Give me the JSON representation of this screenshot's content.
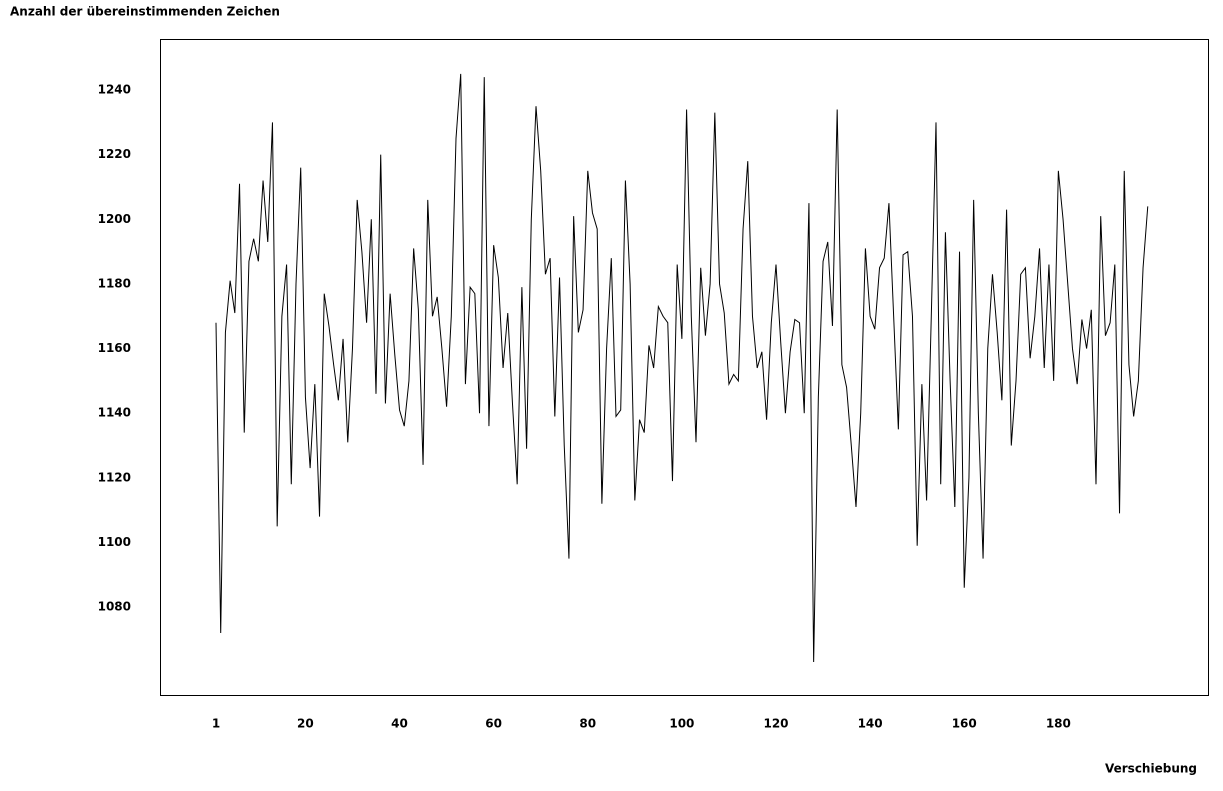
{
  "chart_data": {
    "type": "line",
    "y_label": "Anzahl der übereinstimmenden Zeichen",
    "x_label": "Verschiebung",
    "x": [
      1,
      2,
      3,
      4,
      5,
      6,
      7,
      8,
      9,
      10,
      11,
      12,
      13,
      14,
      15,
      16,
      17,
      18,
      19,
      20,
      21,
      22,
      23,
      24,
      25,
      26,
      27,
      28,
      29,
      30,
      31,
      32,
      33,
      34,
      35,
      36,
      37,
      38,
      39,
      40,
      41,
      42,
      43,
      44,
      45,
      46,
      47,
      48,
      49,
      50,
      51,
      52,
      53,
      54,
      55,
      56,
      57,
      58,
      59,
      60,
      61,
      62,
      63,
      64,
      65,
      66,
      67,
      68,
      69,
      70,
      71,
      72,
      73,
      74,
      75,
      76,
      77,
      78,
      79,
      80,
      81,
      82,
      83,
      84,
      85,
      86,
      87,
      88,
      89,
      90,
      91,
      92,
      93,
      94,
      95,
      96,
      97,
      98,
      99,
      100,
      101,
      102,
      103,
      104,
      105,
      106,
      107,
      108,
      109,
      110,
      111,
      112,
      113,
      114,
      115,
      116,
      117,
      118,
      119,
      120,
      121,
      122,
      123,
      124,
      125,
      126,
      127,
      128,
      129,
      130,
      131,
      132,
      133,
      134,
      135,
      136,
      137,
      138,
      139,
      140,
      141,
      142,
      143,
      144,
      145,
      146,
      147,
      148,
      149,
      150,
      151,
      152,
      153,
      154,
      155,
      156,
      157,
      158,
      159,
      160,
      161,
      162,
      163,
      164,
      165,
      166,
      167,
      168,
      169,
      170,
      171,
      172,
      173,
      174,
      175,
      176,
      177,
      178,
      179,
      180,
      181,
      182,
      183,
      184,
      185,
      186,
      187,
      188,
      189,
      190,
      191,
      192,
      193,
      194,
      195,
      196,
      197,
      198,
      199
    ],
    "series": [
      {
        "color": "#000000",
        "values": [
          1168,
          1072,
          1165,
          1181,
          1171,
          1211,
          1134,
          1187,
          1194,
          1187,
          1212,
          1193,
          1230,
          1105,
          1170,
          1186,
          1118,
          1180,
          1216,
          1145,
          1123,
          1149,
          1108,
          1177,
          1167,
          1155,
          1144,
          1163,
          1131,
          1160,
          1206,
          1190,
          1168,
          1200,
          1146,
          1220,
          1143,
          1177,
          1158,
          1141,
          1136,
          1150,
          1191,
          1172,
          1124,
          1206,
          1170,
          1176,
          1160,
          1142,
          1170,
          1225,
          1245,
          1149,
          1179,
          1177,
          1140,
          1244,
          1136,
          1192,
          1182,
          1154,
          1171,
          1143,
          1118,
          1179,
          1129,
          1200,
          1235,
          1215,
          1183,
          1188,
          1139,
          1182,
          1130,
          1095,
          1201,
          1165,
          1172,
          1215,
          1202,
          1197,
          1112,
          1160,
          1188,
          1139,
          1141,
          1212,
          1180,
          1113,
          1138,
          1134,
          1161,
          1154,
          1173,
          1170,
          1168,
          1119,
          1186,
          1163,
          1234,
          1170,
          1131,
          1185,
          1164,
          1180,
          1233,
          1180,
          1171,
          1149,
          1152,
          1150,
          1197,
          1218,
          1170,
          1154,
          1159,
          1138,
          1168,
          1186,
          1162,
          1140,
          1159,
          1169,
          1168,
          1140,
          1205,
          1063,
          1145,
          1187,
          1193,
          1167,
          1234,
          1155,
          1148,
          1130,
          1111,
          1140,
          1191,
          1170,
          1166,
          1185,
          1188,
          1205,
          1170,
          1135,
          1189,
          1190,
          1170,
          1099,
          1149,
          1113,
          1170,
          1230,
          1118,
          1196,
          1150,
          1111,
          1190,
          1086,
          1120,
          1206,
          1140,
          1095,
          1160,
          1183,
          1165,
          1144,
          1203,
          1130,
          1150,
          1183,
          1185,
          1157,
          1170,
          1191,
          1154,
          1186,
          1150,
          1215,
          1200,
          1180,
          1160,
          1149,
          1169,
          1160,
          1172,
          1118,
          1201,
          1164,
          1168,
          1186,
          1109,
          1215,
          1155,
          1139,
          1150,
          1185,
          1204
        ]
      }
    ],
    "xlim": [
      -10.9,
      211.8
    ],
    "ylim": [
      1052.8,
      1255.8
    ],
    "xticks": [
      1,
      20,
      40,
      60,
      80,
      100,
      120,
      140,
      160,
      180
    ],
    "yticks": [
      1080,
      1100,
      1120,
      1140,
      1160,
      1180,
      1200,
      1220,
      1240
    ],
    "grid": false
  }
}
